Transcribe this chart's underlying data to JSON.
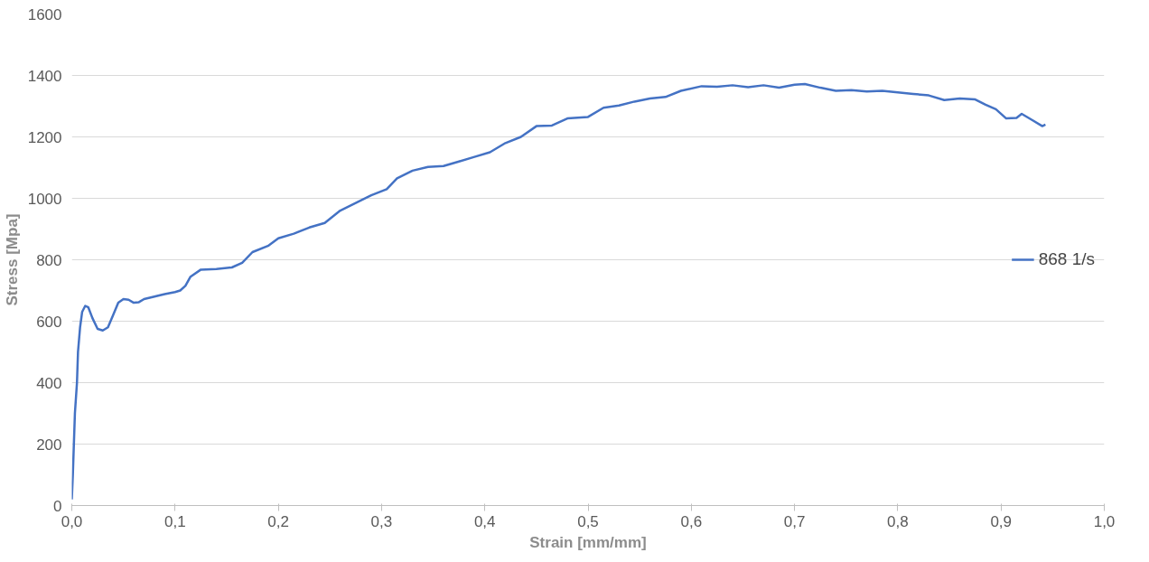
{
  "chart_data": {
    "type": "line",
    "xlabel": "Strain [mm/mm]",
    "ylabel": "Stress [Mpa]",
    "xlim": [
      0,
      1.0
    ],
    "ylim": [
      0,
      1600
    ],
    "xticks": [
      {
        "value": 0,
        "label": "0,0"
      },
      {
        "value": 0.1,
        "label": "0,1"
      },
      {
        "value": 0.2,
        "label": "0,2"
      },
      {
        "value": 0.3,
        "label": "0,3"
      },
      {
        "value": 0.4,
        "label": "0,4"
      },
      {
        "value": 0.5,
        "label": "0,5"
      },
      {
        "value": 0.6,
        "label": "0,6"
      },
      {
        "value": 0.7,
        "label": "0,7"
      },
      {
        "value": 0.8,
        "label": "0,8"
      },
      {
        "value": 0.9,
        "label": "0,9"
      },
      {
        "value": 1.0,
        "label": "1,0"
      }
    ],
    "yticks": [
      0,
      200,
      400,
      600,
      800,
      1000,
      1200,
      1400,
      1600
    ],
    "grid": "y",
    "legend": "right",
    "marker": "none",
    "line_style": "solid",
    "series": [
      {
        "name": "868 1/s",
        "color": "#4472c4",
        "x": [
          0,
          0.001,
          0.002,
          0.003,
          0.005,
          0.006,
          0.008,
          0.01,
          0.013,
          0.016,
          0.02,
          0.025,
          0.03,
          0.035,
          0.04,
          0.045,
          0.05,
          0.055,
          0.06,
          0.065,
          0.07,
          0.08,
          0.09,
          0.1,
          0.105,
          0.11,
          0.115,
          0.125,
          0.14,
          0.155,
          0.165,
          0.175,
          0.19,
          0.2,
          0.215,
          0.23,
          0.245,
          0.26,
          0.275,
          0.29,
          0.305,
          0.315,
          0.33,
          0.345,
          0.36,
          0.375,
          0.39,
          0.405,
          0.42,
          0.435,
          0.45,
          0.465,
          0.48,
          0.5,
          0.515,
          0.53,
          0.545,
          0.56,
          0.575,
          0.59,
          0.61,
          0.625,
          0.64,
          0.655,
          0.67,
          0.685,
          0.7,
          0.71,
          0.725,
          0.74,
          0.755,
          0.77,
          0.785,
          0.8,
          0.815,
          0.83,
          0.845,
          0.86,
          0.875,
          0.885,
          0.895,
          0.905,
          0.915,
          0.92,
          0.93,
          0.94,
          0.943
        ],
        "values": [
          20,
          100,
          200,
          300,
          400,
          500,
          580,
          630,
          650,
          645,
          610,
          575,
          570,
          580,
          620,
          660,
          672,
          670,
          660,
          662,
          672,
          680,
          688,
          695,
          700,
          715,
          745,
          768,
          770,
          775,
          790,
          825,
          845,
          870,
          885,
          905,
          920,
          960,
          985,
          1010,
          1030,
          1065,
          1090,
          1102,
          1105,
          1120,
          1135,
          1150,
          1180,
          1200,
          1235,
          1237,
          1260,
          1265,
          1295,
          1302,
          1315,
          1325,
          1330,
          1350,
          1365,
          1363,
          1368,
          1362,
          1368,
          1360,
          1370,
          1372,
          1360,
          1350,
          1352,
          1348,
          1350,
          1345,
          1340,
          1335,
          1320,
          1325,
          1322,
          1305,
          1290,
          1260,
          1262,
          1275,
          1255,
          1235,
          1240
        ]
      }
    ]
  }
}
